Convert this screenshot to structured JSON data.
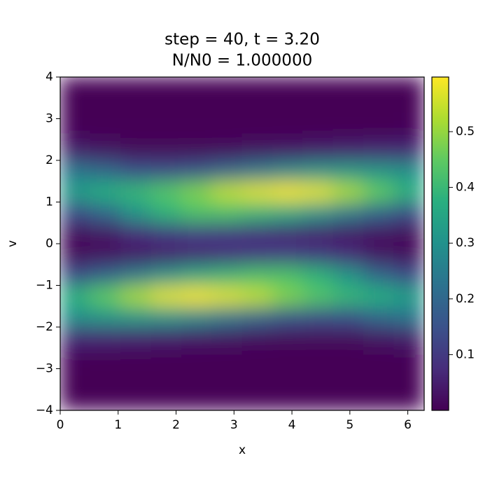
{
  "chart_data": {
    "type": "heatmap",
    "title": [
      "step = 40, t = 3.20",
      "N/N0 = 1.000000"
    ],
    "xlabel": "x",
    "ylabel": "v",
    "colormap": "viridis",
    "x": [
      0.262,
      0.785,
      1.309,
      1.833,
      2.356,
      2.88,
      3.403,
      3.927,
      4.451,
      4.974,
      5.498,
      6.021
    ],
    "y": [
      -3.75,
      -3.25,
      -2.75,
      -2.25,
      -1.75,
      -1.25,
      -0.75,
      -0.25,
      0.25,
      0.75,
      1.25,
      1.75,
      2.25,
      2.75,
      3.25,
      3.75
    ],
    "z": [
      [
        0.001,
        0.001,
        0.001,
        0.001,
        0.001,
        0.001,
        0.001,
        0.001,
        0.001,
        0.001,
        0.001,
        0.001
      ],
      [
        0.002,
        0.002,
        0.002,
        0.002,
        0.002,
        0.002,
        0.002,
        0.002,
        0.002,
        0.002,
        0.002,
        0.002
      ],
      [
        0.007,
        0.006,
        0.006,
        0.005,
        0.004,
        0.003,
        0.003,
        0.003,
        0.003,
        0.003,
        0.004,
        0.005
      ],
      [
        0.067,
        0.062,
        0.056,
        0.048,
        0.039,
        0.029,
        0.022,
        0.015,
        0.014,
        0.016,
        0.031,
        0.046
      ],
      [
        0.296,
        0.31,
        0.316,
        0.307,
        0.28,
        0.238,
        0.201,
        0.158,
        0.143,
        0.148,
        0.199,
        0.229
      ],
      [
        0.378,
        0.449,
        0.517,
        0.57,
        0.586,
        0.566,
        0.539,
        0.48,
        0.435,
        0.397,
        0.37,
        0.332
      ],
      [
        0.141,
        0.189,
        0.246,
        0.307,
        0.358,
        0.391,
        0.421,
        0.424,
        0.384,
        0.31,
        0.199,
        0.14
      ],
      [
        0.015,
        0.023,
        0.034,
        0.048,
        0.064,
        0.078,
        0.096,
        0.109,
        0.099,
        0.071,
        0.031,
        0.017
      ],
      [
        0.017,
        0.031,
        0.071,
        0.099,
        0.109,
        0.096,
        0.078,
        0.064,
        0.048,
        0.034,
        0.023,
        0.015
      ],
      [
        0.14,
        0.199,
        0.31,
        0.384,
        0.424,
        0.421,
        0.391,
        0.358,
        0.307,
        0.246,
        0.189,
        0.141
      ],
      [
        0.332,
        0.37,
        0.397,
        0.435,
        0.48,
        0.539,
        0.566,
        0.586,
        0.57,
        0.517,
        0.449,
        0.378
      ],
      [
        0.229,
        0.199,
        0.148,
        0.143,
        0.158,
        0.201,
        0.238,
        0.28,
        0.307,
        0.316,
        0.31,
        0.296
      ],
      [
        0.046,
        0.031,
        0.016,
        0.014,
        0.015,
        0.022,
        0.029,
        0.039,
        0.048,
        0.056,
        0.062,
        0.067
      ],
      [
        0.005,
        0.004,
        0.003,
        0.003,
        0.003,
        0.003,
        0.003,
        0.004,
        0.005,
        0.006,
        0.006,
        0.007
      ],
      [
        0.002,
        0.002,
        0.002,
        0.002,
        0.002,
        0.002,
        0.002,
        0.002,
        0.002,
        0.002,
        0.002,
        0.002
      ],
      [
        0.001,
        0.001,
        0.001,
        0.001,
        0.001,
        0.001,
        0.001,
        0.001,
        0.001,
        0.001,
        0.001,
        0.001
      ]
    ],
    "xlim": [
      0,
      6.283
    ],
    "ylim": [
      -4,
      4
    ],
    "xticks": [
      0,
      1,
      2,
      3,
      4,
      5,
      6
    ],
    "yticks": [
      {
        "value": -4,
        "label": "−4"
      },
      {
        "value": -3,
        "label": "−3"
      },
      {
        "value": -2,
        "label": "−2"
      },
      {
        "value": -1,
        "label": "−1"
      },
      0,
      1,
      2,
      3,
      4
    ],
    "clim": [
      0,
      0.598
    ],
    "cticks": [
      0.1,
      0.2,
      0.3,
      0.4,
      0.5
    ]
  }
}
